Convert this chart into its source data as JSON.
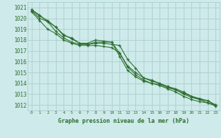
{
  "title": "Graphe pression niveau de la mer (hPa)",
  "background_color": "#ceeaea",
  "grid_color": "#aacece",
  "line_color": "#2d6e2d",
  "marker_color": "#2d6e2d",
  "xlim": [
    -0.5,
    23.5
  ],
  "ylim": [
    1011.5,
    1021.5
  ],
  "xticks": [
    0,
    1,
    2,
    3,
    4,
    5,
    6,
    7,
    8,
    9,
    10,
    11,
    12,
    13,
    14,
    15,
    16,
    17,
    18,
    19,
    20,
    21,
    22,
    23
  ],
  "yticks": [
    1012,
    1013,
    1014,
    1015,
    1016,
    1017,
    1018,
    1019,
    1020,
    1021
  ],
  "series": [
    [
      1020.8,
      1020.3,
      1019.7,
      1019.2,
      1018.5,
      1018.1,
      1017.7,
      1017.7,
      1018.0,
      1017.9,
      1017.8,
      1016.5,
      1015.2,
      1014.6,
      1014.2,
      1014.0,
      1013.8,
      1013.5,
      1013.2,
      1012.8,
      1012.5,
      1012.3,
      1012.2,
      1011.9
    ],
    [
      1020.8,
      1020.2,
      1019.8,
      1019.2,
      1018.4,
      1018.2,
      1017.7,
      1017.6,
      1017.8,
      1017.8,
      1017.8,
      1016.8,
      1015.5,
      1014.8,
      1014.3,
      1014.0,
      1013.9,
      1013.6,
      1013.4,
      1013.0,
      1012.7,
      1012.5,
      1012.4,
      1012.0
    ],
    [
      1020.7,
      1020.0,
      1019.7,
      1018.8,
      1018.2,
      1017.8,
      1017.6,
      1017.6,
      1017.7,
      1017.7,
      1017.6,
      1017.5,
      1016.2,
      1015.4,
      1014.5,
      1014.2,
      1014.0,
      1013.7,
      1013.5,
      1013.2,
      1012.8,
      1012.6,
      1012.4,
      1012.0
    ],
    [
      1020.6,
      1019.8,
      1019.0,
      1018.6,
      1018.0,
      1017.7,
      1017.5,
      1017.5,
      1017.5,
      1017.4,
      1017.3,
      1016.8,
      1015.6,
      1015.0,
      1014.5,
      1014.3,
      1014.0,
      1013.7,
      1013.4,
      1013.1,
      1012.8,
      1012.5,
      1012.2,
      1012.0
    ]
  ]
}
